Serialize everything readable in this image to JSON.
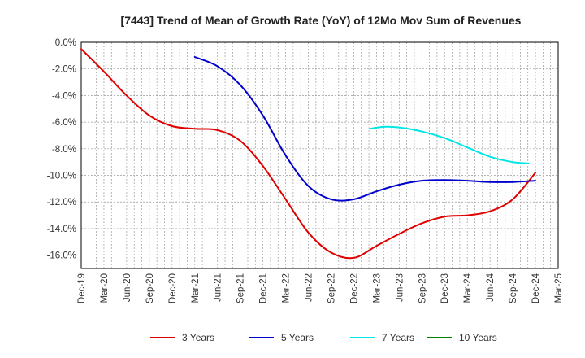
{
  "chart_data": {
    "type": "line",
    "title": "[7443]  Trend of Mean of Growth Rate (YoY) of 12Mo Mov Sum of Revenues",
    "xlabel": "",
    "ylabel": "",
    "ylim": [
      -17.0,
      0.0
    ],
    "yticks": [
      0.0,
      -2.0,
      -4.0,
      -6.0,
      -8.0,
      -10.0,
      -12.0,
      -14.0,
      -16.0
    ],
    "ytick_labels": [
      "0.0%",
      "-2.0%",
      "-4.0%",
      "-6.0%",
      "-8.0%",
      "-10.0%",
      "-12.0%",
      "-14.0%",
      "-16.0%"
    ],
    "x_categories": [
      "Dec-19",
      "Mar-20",
      "Jun-20",
      "Sep-20",
      "Dec-20",
      "Mar-21",
      "Jun-21",
      "Sep-21",
      "Dec-21",
      "Mar-22",
      "Jun-22",
      "Sep-22",
      "Dec-22",
      "Mar-23",
      "Jun-23",
      "Sep-23",
      "Dec-23",
      "Mar-24",
      "Jun-24",
      "Sep-24",
      "Dec-24",
      "Mar-25"
    ],
    "grid": true,
    "legend_position": "bottom",
    "series": [
      {
        "name": "3 Years",
        "color": "#e00000",
        "points": [
          [
            0,
            -0.5
          ],
          [
            1,
            -2.2
          ],
          [
            2,
            -4.0
          ],
          [
            3,
            -5.5
          ],
          [
            4,
            -6.3
          ],
          [
            5,
            -6.5
          ],
          [
            6,
            -6.6
          ],
          [
            7,
            -7.4
          ],
          [
            8,
            -9.3
          ],
          [
            9,
            -11.8
          ],
          [
            10,
            -14.3
          ],
          [
            11,
            -15.8
          ],
          [
            12,
            -16.2
          ],
          [
            13,
            -15.3
          ],
          [
            14,
            -14.4
          ],
          [
            15,
            -13.6
          ],
          [
            16,
            -13.1
          ],
          [
            17,
            -13.0
          ],
          [
            18,
            -12.7
          ],
          [
            19,
            -11.8
          ],
          [
            20,
            -9.8
          ]
        ]
      },
      {
        "name": "5 Years",
        "color": "#0000cc",
        "points": [
          [
            5,
            -1.1
          ],
          [
            6,
            -1.8
          ],
          [
            7,
            -3.2
          ],
          [
            8,
            -5.5
          ],
          [
            9,
            -8.5
          ],
          [
            10,
            -10.8
          ],
          [
            11,
            -11.8
          ],
          [
            12,
            -11.8
          ],
          [
            13,
            -11.2
          ],
          [
            14,
            -10.7
          ],
          [
            15,
            -10.4
          ],
          [
            16,
            -10.35
          ],
          [
            17,
            -10.4
          ],
          [
            18,
            -10.5
          ],
          [
            19,
            -10.5
          ],
          [
            20,
            -10.4
          ]
        ]
      },
      {
        "name": "7 Years",
        "color": "#00e5e5",
        "points": [
          [
            12.7,
            -6.5
          ],
          [
            13.3,
            -6.35
          ],
          [
            14,
            -6.4
          ],
          [
            15,
            -6.7
          ],
          [
            16,
            -7.2
          ],
          [
            17,
            -7.9
          ],
          [
            18,
            -8.6
          ],
          [
            19,
            -9.0
          ],
          [
            19.7,
            -9.1
          ]
        ]
      },
      {
        "name": "10 Years",
        "color": "#008000",
        "points": []
      }
    ]
  }
}
